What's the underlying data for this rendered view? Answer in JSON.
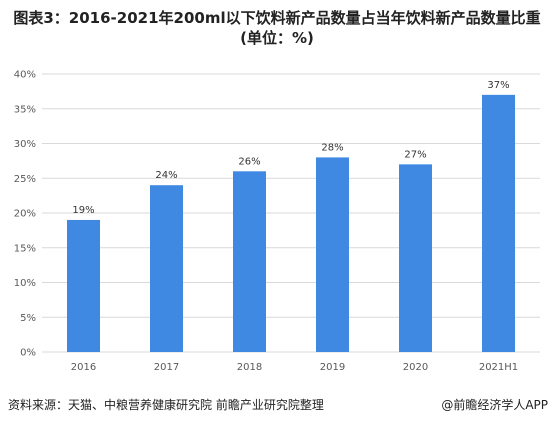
{
  "header": {
    "title": "图表3：2016-2021年200ml以下饮料新产品数量占当年饮料新产品数量比重(单位：%)"
  },
  "footer": {
    "source": "资料来源：天猫、中粮营养健康研究院 前瞻产业研究院整理",
    "credit": "@前瞻经济学人APP"
  },
  "chart_data": {
    "type": "bar",
    "title": "图表3：2016-2021年200ml以下饮料新产品数量占当年饮料新产品数量比重(单位：%)",
    "categories": [
      "2016",
      "2017",
      "2018",
      "2019",
      "2020",
      "2021H1"
    ],
    "values": [
      19,
      24,
      26,
      28,
      27,
      37
    ],
    "data_labels": [
      "19%",
      "24%",
      "26%",
      "28%",
      "27%",
      "37%"
    ],
    "y_ticks": [
      "0%",
      "5%",
      "10%",
      "15%",
      "20%",
      "25%",
      "30%",
      "35%",
      "40%"
    ],
    "ylim": [
      0,
      40
    ],
    "ystep": 5,
    "xlabel": "",
    "ylabel": "",
    "grid": true,
    "legend": "none",
    "bar_color": "#3f89e3",
    "grid_color": "#d9d9d9"
  }
}
